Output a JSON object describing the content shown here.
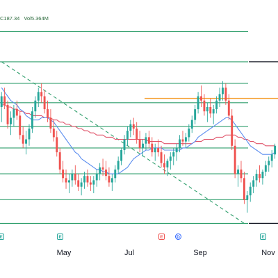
{
  "legend": {
    "close": "C187.34",
    "volume": "Vol5.364M"
  },
  "colors": {
    "up": "#26a69a",
    "down": "#ef5350",
    "ma_fast": "#5b8def",
    "ma_slow": "#e0556b",
    "hline": "#2e9e6b",
    "trend": "#2e9e6b",
    "resistance": "#f5a032",
    "black_line": "#131722"
  },
  "markers": [
    {
      "label": "E",
      "kind": "earnings"
    },
    {
      "label": "E",
      "kind": "earnings-red"
    },
    {
      "label": "D",
      "kind": "dividend"
    },
    {
      "label": "E",
      "kind": "earnings"
    }
  ],
  "chart_data": {
    "type": "candlestick",
    "x_tick_labels": [
      "May",
      "Jul",
      "Sep",
      "Nov"
    ],
    "ohlc": [
      [
        205,
        212,
        198,
        210
      ],
      [
        210,
        214,
        204,
        206
      ],
      [
        206,
        208,
        195,
        197
      ],
      [
        197,
        203,
        192,
        200
      ],
      [
        200,
        206,
        196,
        204
      ],
      [
        204,
        208,
        199,
        201
      ],
      [
        201,
        203,
        190,
        192
      ],
      [
        192,
        196,
        186,
        188
      ],
      [
        188,
        194,
        183,
        190
      ],
      [
        190,
        197,
        187,
        195
      ],
      [
        195,
        205,
        193,
        203
      ],
      [
        203,
        210,
        200,
        208
      ],
      [
        208,
        214,
        205,
        212
      ],
      [
        212,
        216,
        207,
        210
      ],
      [
        210,
        213,
        202,
        204
      ],
      [
        204,
        208,
        198,
        200
      ],
      [
        200,
        204,
        193,
        195
      ],
      [
        195,
        199,
        189,
        191
      ],
      [
        191,
        194,
        182,
        184
      ],
      [
        184,
        186,
        174,
        176
      ],
      [
        176,
        180,
        170,
        172
      ],
      [
        172,
        176,
        167,
        170
      ],
      [
        170,
        174,
        165,
        171
      ],
      [
        171,
        176,
        168,
        174
      ],
      [
        174,
        178,
        169,
        171
      ],
      [
        171,
        174,
        166,
        168
      ],
      [
        168,
        172,
        164,
        170
      ],
      [
        170,
        175,
        167,
        173
      ],
      [
        173,
        176,
        168,
        170
      ],
      [
        170,
        173,
        166,
        169
      ],
      [
        169,
        173,
        165,
        171
      ],
      [
        171,
        176,
        168,
        174
      ],
      [
        174,
        179,
        171,
        177
      ],
      [
        177,
        181,
        173,
        176
      ],
      [
        176,
        180,
        171,
        173
      ],
      [
        173,
        177,
        168,
        170
      ],
      [
        170,
        174,
        166,
        172
      ],
      [
        172,
        178,
        170,
        176
      ],
      [
        176,
        182,
        174,
        180
      ],
      [
        180,
        186,
        178,
        185
      ],
      [
        185,
        192,
        183,
        190
      ],
      [
        190,
        196,
        187,
        194
      ],
      [
        194,
        199,
        191,
        197
      ],
      [
        197,
        200,
        192,
        195
      ],
      [
        195,
        198,
        188,
        190
      ],
      [
        190,
        194,
        184,
        186
      ],
      [
        186,
        190,
        182,
        188
      ],
      [
        188,
        193,
        185,
        191
      ],
      [
        191,
        194,
        186,
        188
      ],
      [
        188,
        191,
        182,
        184
      ],
      [
        184,
        188,
        180,
        186
      ],
      [
        186,
        190,
        182,
        184
      ],
      [
        184,
        187,
        177,
        179
      ],
      [
        179,
        183,
        174,
        177
      ],
      [
        177,
        181,
        173,
        180
      ],
      [
        180,
        184,
        176,
        182
      ],
      [
        182,
        186,
        178,
        184
      ],
      [
        184,
        188,
        180,
        186
      ],
      [
        186,
        192,
        184,
        190
      ],
      [
        190,
        194,
        187,
        189
      ],
      [
        189,
        193,
        186,
        191
      ],
      [
        191,
        197,
        189,
        195
      ],
      [
        195,
        201,
        193,
        199
      ],
      [
        199,
        206,
        197,
        204
      ],
      [
        204,
        212,
        202,
        210
      ],
      [
        210,
        215,
        205,
        208
      ],
      [
        208,
        211,
        201,
        203
      ],
      [
        203,
        207,
        198,
        205
      ],
      [
        205,
        209,
        200,
        202
      ],
      [
        202,
        206,
        197,
        204
      ],
      [
        204,
        210,
        202,
        208
      ],
      [
        208,
        214,
        205,
        211
      ],
      [
        211,
        217,
        208,
        214
      ],
      [
        214,
        216,
        206,
        208
      ],
      [
        208,
        211,
        199,
        201
      ],
      [
        201,
        204,
        185,
        187
      ],
      [
        187,
        190,
        172,
        174
      ],
      [
        174,
        178,
        168,
        176
      ],
      [
        176,
        180,
        170,
        172
      ],
      [
        172,
        175,
        160,
        162
      ],
      [
        162,
        166,
        156,
        164
      ],
      [
        164,
        170,
        161,
        168
      ],
      [
        168,
        173,
        165,
        171
      ],
      [
        171,
        176,
        168,
        174
      ],
      [
        174,
        178,
        170,
        172
      ],
      [
        172,
        176,
        169,
        175
      ],
      [
        175,
        180,
        173,
        178
      ],
      [
        178,
        182,
        175,
        180
      ],
      [
        180,
        185,
        177,
        183
      ],
      [
        183,
        188,
        181,
        187
      ]
    ],
    "ma_fast": [
      214,
      212,
      210,
      208,
      207,
      206,
      204,
      203,
      201,
      200,
      199,
      199,
      199,
      200,
      200,
      200,
      199,
      198,
      196,
      194,
      192,
      190,
      188,
      186,
      184,
      183,
      181,
      180,
      179,
      178,
      177,
      176,
      176,
      175,
      175,
      174,
      174,
      174,
      174,
      175,
      176,
      177,
      179,
      181,
      182,
      183,
      184,
      185,
      185,
      186,
      186,
      186,
      186,
      185,
      185,
      185,
      185,
      185,
      185,
      186,
      186,
      187,
      188,
      189,
      191,
      192,
      193,
      194,
      195,
      196,
      197,
      198,
      199,
      200,
      200,
      199,
      197,
      195,
      193,
      191,
      189,
      187,
      186,
      185,
      184,
      183,
      183,
      183,
      183,
      184
    ],
    "ma_slow": [
      206,
      206,
      205,
      205,
      204,
      204,
      203,
      203,
      202,
      202,
      201,
      201,
      201,
      201,
      200,
      200,
      200,
      199,
      199,
      198,
      198,
      197,
      197,
      196,
      196,
      195,
      195,
      194,
      194,
      193,
      193,
      192,
      192,
      192,
      191,
      191,
      191,
      190,
      190,
      190,
      190,
      190,
      190,
      190,
      190,
      190,
      190,
      190,
      189,
      189,
      189,
      189,
      189,
      188,
      188,
      188,
      188,
      188,
      188,
      188,
      188,
      188,
      188,
      189,
      189,
      189,
      190,
      190,
      190,
      190,
      191,
      191,
      191,
      192,
      192,
      192,
      192,
      191,
      191,
      190,
      190,
      189,
      189,
      188,
      188,
      188,
      187,
      187,
      187,
      187
    ],
    "horizontal_levels": [
      240,
      226,
      216,
      207,
      196,
      186,
      174,
      162,
      151
    ],
    "resistance_level": 209,
    "black_levels": [
      226,
      151
    ],
    "trendline": {
      "from": [
        0,
        226
      ],
      "to": [
        79,
        151
      ]
    }
  }
}
